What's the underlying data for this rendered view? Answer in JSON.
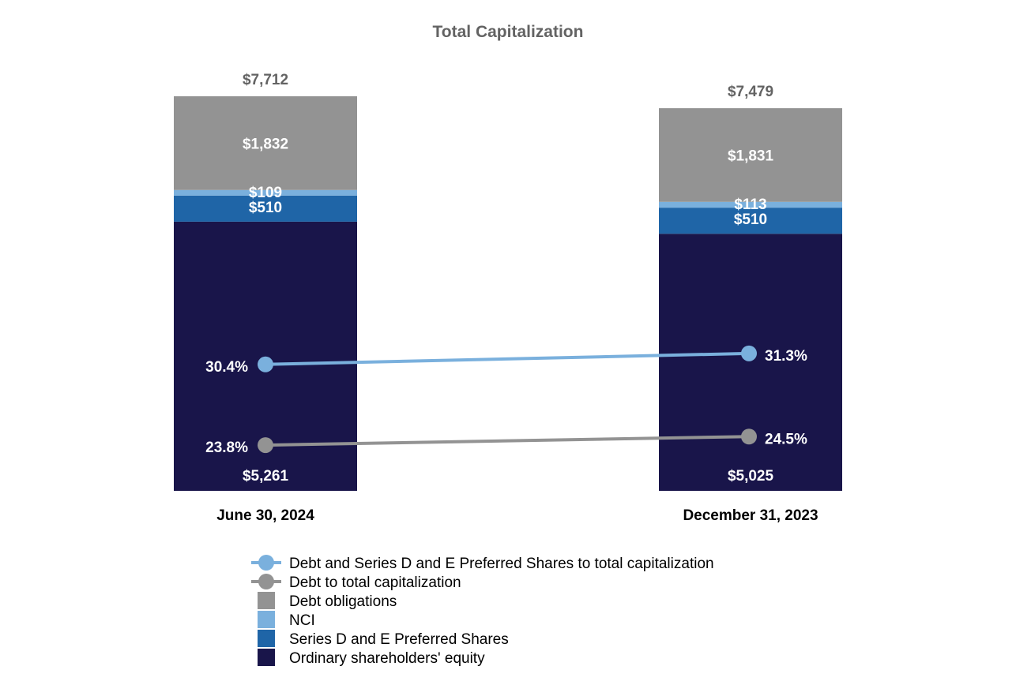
{
  "chart_data": {
    "type": "bar",
    "stacked": true,
    "title": "Total Capitalization",
    "categories": [
      "June 30, 2024",
      "December 31, 2023"
    ],
    "totals": [
      "$7,712",
      "$7,479"
    ],
    "total_values": [
      7712,
      7479
    ],
    "series": [
      {
        "name": "Ordinary shareholders' equity",
        "color": "#19154a",
        "values": [
          5261,
          5025
        ],
        "labels": [
          "$5,261",
          "$5,025"
        ]
      },
      {
        "name": "Series D and E Preferred Shares",
        "color": "#1f65a7",
        "values": [
          510,
          510
        ],
        "labels": [
          "$510",
          "$510"
        ]
      },
      {
        "name": "NCI",
        "color": "#7ab0dd",
        "values": [
          109,
          113
        ],
        "labels": [
          "$109",
          "$113"
        ]
      },
      {
        "name": "Debt obligations",
        "color": "#939393",
        "values": [
          1832,
          1831
        ],
        "labels": [
          "$1,832",
          "$1,831"
        ]
      }
    ],
    "lines": [
      {
        "name": "Debt and Series D and E Preferred Shares to total capitalization",
        "color": "#7ab0dd",
        "values": [
          30.4,
          31.3
        ],
        "labels": [
          "30.4%",
          "31.3%"
        ]
      },
      {
        "name": "Debt to total capitalization",
        "color": "#939393",
        "values": [
          23.8,
          24.5
        ],
        "labels": [
          "23.8%",
          "24.5%"
        ]
      }
    ],
    "legend": [
      {
        "label": "Debt and Series D and E Preferred Shares to total capitalization",
        "kind": "line",
        "color": "#7ab0dd"
      },
      {
        "label": "Debt to total capitalization",
        "kind": "line",
        "color": "#939393"
      },
      {
        "label": "Debt obligations",
        "kind": "box",
        "color": "#939393"
      },
      {
        "label": "NCI",
        "kind": "box",
        "color": "#7ab0dd"
      },
      {
        "label": "Series D and E Preferred Shares",
        "kind": "box",
        "color": "#1f65a7"
      },
      {
        "label": "Ordinary shareholders' equity",
        "kind": "box",
        "color": "#19154a"
      }
    ],
    "legend_position": "bottom",
    "grid": false
  }
}
